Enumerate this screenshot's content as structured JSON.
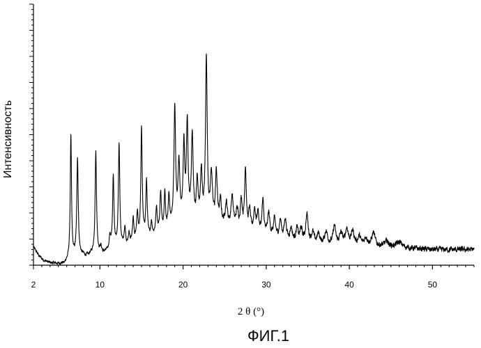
{
  "chart_data": {
    "type": "line",
    "title": "",
    "xlabel": "2 θ (°)",
    "ylabel": "Интенсивность",
    "caption": "ФИГ.1",
    "xlim": [
      2,
      55
    ],
    "ylim": [
      0,
      100
    ],
    "xticks": [
      2,
      10,
      20,
      30,
      40,
      50
    ],
    "y_tick_labels_shown": false,
    "grid": false,
    "legend": "none",
    "line_color": "#000000",
    "baseline": {
      "x": [
        2,
        2.3,
        2.7,
        3.2,
        4,
        5,
        5.8,
        6.2,
        7.5,
        10,
        15,
        20,
        25,
        30,
        35,
        40,
        45,
        50,
        55
      ],
      "y": [
        7,
        5.5,
        3.5,
        2,
        1,
        0.8,
        1.2,
        2,
        4,
        5,
        10,
        17,
        15,
        11,
        8,
        8,
        7,
        6,
        6
      ]
    },
    "peaks": {
      "x": [
        6.5,
        7.3,
        9.5,
        10.1,
        11.2,
        11.6,
        12.3,
        13.0,
        13.5,
        14.0,
        14.5,
        15.0,
        15.6,
        16.2,
        16.8,
        17.3,
        17.8,
        18.3,
        19.0,
        19.5,
        20.1,
        20.5,
        21.1,
        21.7,
        22.2,
        22.8,
        23.4,
        24.0,
        24.5,
        25.2,
        25.9,
        26.5,
        27.0,
        27.5,
        28.0,
        28.6,
        29.0,
        29.6,
        30.3,
        31.0,
        31.7,
        32.3,
        33.0,
        33.7,
        34.2,
        34.9,
        35.6,
        36.3,
        37.2,
        38.2,
        39.0,
        39.7,
        40.4,
        41.2,
        42.0,
        42.9,
        44.5,
        46.0
      ],
      "height": [
        47,
        38,
        39,
        2,
        5,
        27,
        39,
        6,
        4,
        9,
        10,
        42,
        21,
        5,
        10,
        15,
        14,
        12,
        45,
        23,
        28,
        37,
        33,
        16,
        19,
        64,
        19,
        20,
        9,
        9,
        12,
        7,
        11,
        24,
        8,
        9,
        8,
        13,
        9,
        7,
        7,
        8,
        5,
        5,
        5,
        11,
        4,
        4,
        5,
        7,
        4,
        6,
        5,
        3,
        3,
        5,
        2,
        2
      ],
      "width": [
        0.09,
        0.1,
        0.1,
        0.1,
        0.1,
        0.1,
        0.1,
        0.1,
        0.1,
        0.1,
        0.1,
        0.1,
        0.1,
        0.1,
        0.1,
        0.1,
        0.1,
        0.1,
        0.12,
        0.12,
        0.12,
        0.12,
        0.13,
        0.13,
        0.13,
        0.12,
        0.14,
        0.14,
        0.14,
        0.16,
        0.16,
        0.16,
        0.14,
        0.12,
        0.14,
        0.14,
        0.14,
        0.14,
        0.16,
        0.16,
        0.16,
        0.16,
        0.16,
        0.16,
        0.18,
        0.18,
        0.2,
        0.2,
        0.2,
        0.18,
        0.2,
        0.2,
        0.2,
        0.2,
        0.22,
        0.22,
        0.3,
        0.4
      ]
    }
  }
}
